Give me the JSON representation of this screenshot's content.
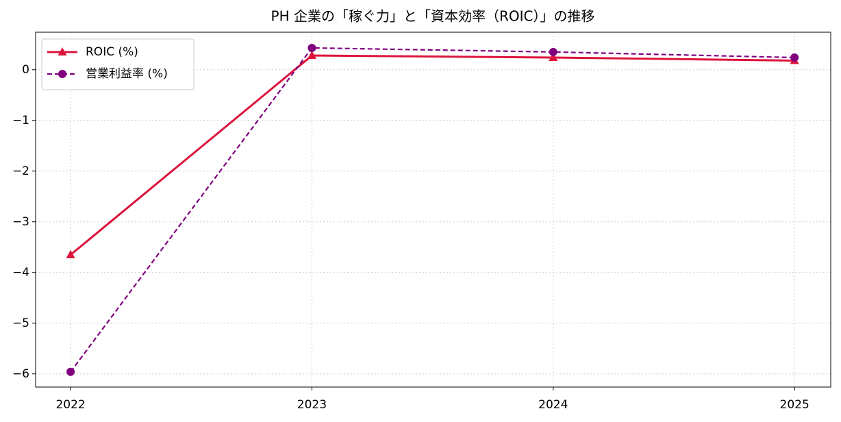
{
  "chart_data": {
    "type": "line",
    "title": "PH 企業の「稼ぐ力」と「資本効率（ROIC）」の推移",
    "x": [
      2022,
      2023,
      2024,
      2025
    ],
    "series": [
      {
        "name": "ROIC (%)",
        "color": "#dc143c",
        "marker": "triangle",
        "linestyle": "solid",
        "values": [
          -3.65,
          0.28,
          0.24,
          0.18
        ]
      },
      {
        "name": "営業利益率 (%)",
        "color": "#800080",
        "marker": "circle",
        "linestyle": "dashed",
        "values": [
          -5.96,
          0.43,
          0.35,
          0.24
        ]
      }
    ],
    "xlim": [
      2021.855,
      2025.15
    ],
    "xticks": [
      2022,
      2023,
      2024,
      2025
    ],
    "ylim": [
      -6.26,
      0.74
    ],
    "yticks": [
      0,
      {
        "value": -1,
        "label": "−1"
      },
      {
        "value": -2,
        "label": "−2"
      },
      {
        "value": -3,
        "label": "−3"
      },
      {
        "value": -4,
        "label": "−4"
      },
      {
        "value": -5,
        "label": "−5"
      },
      {
        "value": -6,
        "label": "−6"
      }
    ],
    "grid": true,
    "legend": "upper left"
  }
}
